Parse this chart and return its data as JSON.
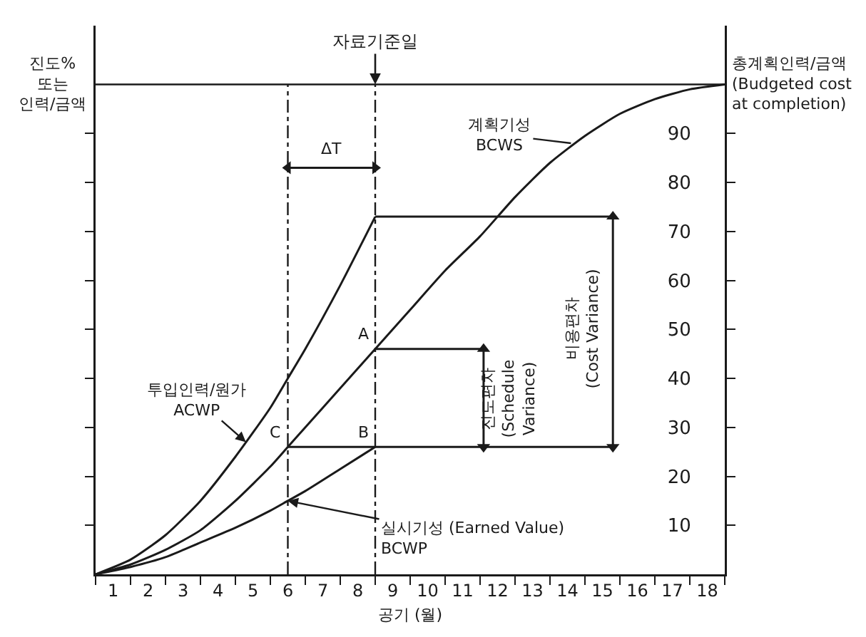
{
  "chart_data": {
    "type": "line",
    "xlabel": "공기 (월)",
    "ylabel": "진도%\n또는\n인력/금액",
    "xlim": [
      0,
      18
    ],
    "ylim": [
      0,
      112
    ],
    "xticks": [
      {
        "value": 0,
        "label": null
      },
      {
        "value": 0.5,
        "label": "1"
      },
      {
        "value": 1,
        "label": null
      },
      {
        "value": 1.5,
        "label": "2"
      },
      {
        "value": 2,
        "label": null
      },
      {
        "value": 2.5,
        "label": "3"
      },
      {
        "value": 3,
        "label": null
      },
      {
        "value": 3.5,
        "label": "4"
      },
      {
        "value": 4,
        "label": null
      },
      {
        "value": 4.5,
        "label": "5"
      },
      {
        "value": 5,
        "label": null
      },
      {
        "value": 5.5,
        "label": "6"
      },
      {
        "value": 6,
        "label": null
      },
      {
        "value": 6.5,
        "label": "7"
      },
      {
        "value": 7,
        "label": null
      },
      {
        "value": 7.5,
        "label": "8"
      },
      {
        "value": 8,
        "label": null
      },
      {
        "value": 8.5,
        "label": "9"
      },
      {
        "value": 9,
        "label": null
      },
      {
        "value": 9.5,
        "label": "10"
      },
      {
        "value": 10,
        "label": null
      },
      {
        "value": 10.5,
        "label": "11"
      },
      {
        "value": 11,
        "label": null
      },
      {
        "value": 11.5,
        "label": "12"
      },
      {
        "value": 12,
        "label": null
      },
      {
        "value": 12.5,
        "label": "13"
      },
      {
        "value": 13,
        "label": null
      },
      {
        "value": 13.5,
        "label": "14"
      },
      {
        "value": 14,
        "label": null
      },
      {
        "value": 14.5,
        "label": "15"
      },
      {
        "value": 15,
        "label": null
      },
      {
        "value": 15.5,
        "label": "16"
      },
      {
        "value": 16,
        "label": null
      },
      {
        "value": 16.5,
        "label": "17"
      },
      {
        "value": 17,
        "label": null
      },
      {
        "value": 17.5,
        "label": "18"
      },
      {
        "value": 18,
        "label": null
      }
    ],
    "yticks": [
      10,
      20,
      30,
      40,
      50,
      60,
      70,
      80,
      90
    ],
    "grid": false,
    "marker": "none",
    "line_style": "solid",
    "series": [
      {
        "color": "#1a1a1a",
        "x": [
          0,
          1,
          2,
          3,
          4,
          5,
          5.5,
          6,
          7,
          8,
          9,
          10,
          11,
          12,
          13,
          14,
          15,
          16,
          17,
          18
        ],
        "values": [
          0,
          2,
          5,
          9,
          15,
          22,
          26,
          30,
          38,
          46,
          54,
          62,
          69,
          77,
          84,
          89.5,
          94,
          97,
          99,
          100
        ]
      },
      {
        "color": "#1a1a1a",
        "x": [
          0,
          1,
          2,
          3,
          4,
          5,
          5.5,
          6,
          7,
          8
        ],
        "values": [
          0,
          3,
          8,
          15,
          24,
          34,
          40,
          46,
          59,
          73
        ]
      },
      {
        "color": "#1a1a1a",
        "x": [
          0,
          1,
          2,
          3,
          4,
          5,
          5.5,
          6,
          7,
          8
        ],
        "values": [
          0,
          1.5,
          3.5,
          6.5,
          9.5,
          13,
          15,
          17,
          21.5,
          26
        ]
      },
      {
        "color": "#1a1a1a",
        "marker": "triangle",
        "x": [
          11.1,
          11.1
        ],
        "values": [
          26,
          46
        ]
      },
      {
        "color": "#1a1a1a",
        "marker": "triangle",
        "x": [
          14.8,
          14.8
        ],
        "values": [
          26,
          73
        ]
      },
      {
        "color": "#1a1a1a",
        "marker": "triangle",
        "x": [
          5.5,
          8
        ],
        "values": [
          83,
          83
        ]
      },
      {
        "color": "#1a1a1a",
        "x": [
          5.5,
          14.8
        ],
        "values": [
          26,
          26
        ]
      },
      {
        "color": "#1a1a1a",
        "x": [
          8,
          14.8
        ],
        "values": [
          73,
          73
        ]
      },
      {
        "color": "#1a1a1a",
        "x": [
          8,
          11.1
        ],
        "values": [
          46,
          46
        ]
      }
    ],
    "ref_lines": [
      {
        "axis": "y",
        "value": 100,
        "label": "총계획인력/금액\n(Budgeted cost\nat completion)",
        "line_style": "solid"
      },
      {
        "axis": "x",
        "value": 8,
        "label": "자료기준일",
        "line_style": "dashed"
      },
      {
        "axis": "x",
        "value": 5.5,
        "line_style": "dashed"
      }
    ],
    "annotations": [
      {
        "text": "A",
        "x": 8,
        "y": 46
      },
      {
        "text": "B",
        "x": 8,
        "y": 26
      },
      {
        "text": "C",
        "x": 5.5,
        "y": 26
      },
      {
        "text": "ΔT",
        "x": 6.75,
        "y": 83
      },
      {
        "text": "계획기성\nBCWS",
        "x": 13.6,
        "y": 88
      },
      {
        "text": "투입인력/원가\nACWP",
        "x": 4.3,
        "y": 27
      },
      {
        "text": "실시기성 (Earned Value)\nBCWP",
        "x": 5.5,
        "y": 15
      },
      {
        "text": "진도편차\n(Schedule\nVariance)",
        "x": 11.1,
        "y": 36
      },
      {
        "text": "비용편차\n(Cost Variance)",
        "x": 14.8,
        "y": 50
      }
    ]
  }
}
